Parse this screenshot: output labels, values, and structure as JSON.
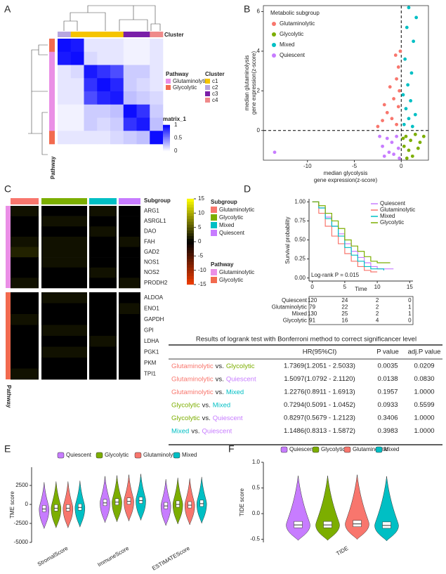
{
  "panel_labels": [
    "A",
    "B",
    "C",
    "D",
    "E",
    "F"
  ],
  "panel_a": {
    "type": "heatmap",
    "column_annotation_title": "Cluster",
    "row_annotation_title": "Pathway",
    "matrix": [
      [
        0.95,
        0.9,
        0.1,
        0.1,
        0.1,
        0.05,
        0.05,
        0.1
      ],
      [
        0.9,
        0.95,
        0.15,
        0.1,
        0.1,
        0.05,
        0.05,
        0.1
      ],
      [
        0.1,
        0.15,
        0.9,
        0.8,
        0.7,
        0.2,
        0.2,
        0.1
      ],
      [
        0.1,
        0.1,
        0.8,
        0.95,
        0.85,
        0.2,
        0.15,
        0.1
      ],
      [
        0.1,
        0.1,
        0.7,
        0.85,
        0.9,
        0.25,
        0.2,
        0.15
      ],
      [
        0.05,
        0.05,
        0.2,
        0.2,
        0.25,
        0.95,
        0.8,
        0.2
      ],
      [
        0.05,
        0.05,
        0.2,
        0.15,
        0.2,
        0.8,
        0.9,
        0.25
      ],
      [
        0.1,
        0.1,
        0.1,
        0.1,
        0.15,
        0.2,
        0.25,
        0.95
      ]
    ],
    "col_colors": [
      "#b7a6e0",
      "#f5c400",
      "#f5c400",
      "#f5c400",
      "#f5c400",
      "#7a1fa8",
      "#7a1fa8",
      "#ef8a8a"
    ],
    "row_colors": [
      "#f26a4f",
      "#ea8fe6",
      "#ea8fe6",
      "#ea8fe6",
      "#ea8fe6",
      "#ea8fe6",
      "#ea8fe6",
      "#f26a4f"
    ],
    "pathway_legend": {
      "title": "Pathway",
      "items": [
        {
          "name": "Glutaminolytic",
          "color": "#ea8fe6"
        },
        {
          "name": "Glycolytic",
          "color": "#f26a4f"
        }
      ]
    },
    "cluster_legend": {
      "title": "Cluster",
      "items": [
        {
          "name": "c1",
          "color": "#f5c400"
        },
        {
          "name": "c2",
          "color": "#b7a6e0"
        },
        {
          "name": "c3",
          "color": "#7a1fa8"
        },
        {
          "name": "c4",
          "color": "#ef8a8a"
        }
      ]
    },
    "colorbar": {
      "title": "matrix_1",
      "lim": [
        0,
        1
      ],
      "ticks": [
        1,
        0.5,
        0
      ]
    }
  },
  "panel_b": {
    "type": "scatter",
    "legend_title": "Metabolic subgroup",
    "x_label": [
      "median glycolysis",
      "gene expression(z-score)"
    ],
    "y_label": [
      "median glutaminolysis",
      "gene expression(z-score)"
    ],
    "xlim": [
      -14.7,
      2.9
    ],
    "ylim": [
      -1.5,
      6.3
    ],
    "xticks": [
      -10,
      -5,
      0
    ],
    "yticks": [
      0,
      2,
      4,
      6
    ],
    "series": [
      {
        "name": "Glutaminolytic",
        "color": "#f8766d",
        "x": [
          -0.5,
          -1,
          -1.5,
          -0.3,
          -2,
          -0.8,
          -0.2,
          -1.2,
          -0.5,
          -0.3,
          -0.6,
          -0.1,
          -2.5,
          -1.8
        ],
        "values": [
          0.3,
          0.6,
          0.9,
          1.2,
          0.5,
          1.6,
          2,
          2.2,
          2.6,
          3.2,
          3.8,
          4,
          0.2,
          1.3
        ]
      },
      {
        "name": "Glycolytic",
        "color": "#7cae00",
        "x": [
          0.5,
          1,
          1.5,
          0.3,
          2,
          0.8,
          1.2,
          0.2,
          1.8,
          2.4,
          0.6
        ],
        "values": [
          -0.3,
          -0.5,
          -0.2,
          -0.8,
          -0.6,
          -1,
          -1.3,
          -0.4,
          -0.9,
          -0.3,
          -1.4
        ]
      },
      {
        "name": "Mixed",
        "color": "#00bfc4",
        "x": [
          0.3,
          0.8,
          1.2,
          0.5,
          1,
          0.2,
          1.5,
          0.7,
          1.1,
          0.4,
          1.3,
          0.6,
          1.6,
          0.8
        ],
        "values": [
          0.3,
          0.6,
          0.2,
          1.1,
          1.5,
          1.8,
          0.8,
          2.3,
          2.9,
          3.6,
          4.5,
          5.2,
          5.7,
          6.2
        ]
      },
      {
        "name": "Quiescent",
        "color": "#c77cff",
        "x": [
          -0.5,
          -1,
          -1.5,
          -0.3,
          -2,
          -0.8,
          -1.3,
          -2.3,
          -0.2,
          -1.8,
          -13.5
        ],
        "values": [
          -0.3,
          -0.6,
          -0.4,
          -0.9,
          -0.8,
          -1.2,
          -1.1,
          -0.3,
          -1.4,
          -1.3,
          -1.1
        ]
      }
    ]
  },
  "panel_c": {
    "type": "heatmap",
    "column_annotation_title": "Subgroup",
    "row_annotation_title": "Pathway",
    "subgroup_legend": {
      "title": "Subgroup",
      "items": [
        {
          "name": "Glutaminolytic",
          "color": "#f8766d"
        },
        {
          "name": "Glycolytic",
          "color": "#7cae00"
        },
        {
          "name": "Mixed",
          "color": "#00bfc4"
        },
        {
          "name": "Quiescent",
          "color": "#c77cff"
        }
      ]
    },
    "pathway_legend": {
      "title": "Pathway",
      "items": [
        {
          "name": "Glutaminolytic",
          "color": "#ea8fe6"
        },
        {
          "name": "Glycolytic",
          "color": "#f26a4f"
        }
      ]
    },
    "colorbar": {
      "lim": [
        -15,
        15
      ],
      "ticks": [
        15,
        10,
        5,
        0,
        -5,
        -10,
        -15
      ]
    },
    "row_blocks": [
      {
        "genes": [
          "ARG1",
          "ASRGL1",
          "DAO",
          "FAH",
          "GAD2",
          "NOS1",
          "NOS2",
          "PRODH2"
        ],
        "matrix": [
          [
            1,
            0,
            1,
            0
          ],
          [
            0,
            1,
            0,
            0
          ],
          [
            0,
            0,
            1,
            0
          ],
          [
            1,
            1,
            0,
            1
          ],
          [
            2,
            1,
            0,
            0
          ],
          [
            0,
            1,
            0,
            0
          ],
          [
            0,
            0,
            1,
            0
          ],
          [
            1,
            0,
            0,
            1
          ]
        ]
      },
      {
        "genes": [
          "ALDOA",
          "ENO1",
          "GAPDH",
          "GPI",
          "LDHA",
          "PGK1",
          "PKM",
          "TPI1"
        ],
        "matrix": [
          [
            0,
            1,
            0,
            0
          ],
          [
            0,
            0,
            0,
            1
          ],
          [
            1,
            0,
            0,
            0
          ],
          [
            0,
            1,
            0,
            0
          ],
          [
            0,
            0,
            1,
            0
          ],
          [
            0,
            1,
            0,
            0
          ],
          [
            0,
            0,
            0,
            0
          ],
          [
            1,
            0,
            0,
            0
          ]
        ]
      }
    ]
  },
  "panel_d": {
    "type": "line",
    "y_label": "Survival probability",
    "x_label": "Time",
    "xlim": [
      -0.5,
      15.5
    ],
    "ylim": [
      -0.04,
      1.04
    ],
    "xticks": [
      0,
      5,
      10,
      15
    ],
    "yticks": [
      {
        "value": 0,
        "label": "0.00"
      },
      {
        "value": 0.25,
        "label": "0.25"
      },
      {
        "value": 0.5,
        "label": "0.50"
      },
      {
        "value": 0.75,
        "label": "0.75"
      },
      {
        "value": 1,
        "label": "1.00"
      }
    ],
    "annotation": "Log-rank P = 0.015",
    "series": [
      {
        "name": "Quiescent",
        "color": "#c77cff",
        "x": [
          0,
          1,
          2,
          3,
          4,
          5,
          6,
          7,
          8,
          9,
          10,
          12.5
        ],
        "values": [
          1,
          0.92,
          0.8,
          0.68,
          0.58,
          0.45,
          0.35,
          0.27,
          0.2,
          0.15,
          0.12,
          0.12
        ]
      },
      {
        "name": "Glutaminolytic",
        "color": "#f8766d",
        "x": [
          0,
          1,
          2,
          3,
          4,
          5,
          6,
          7,
          8,
          9,
          10
        ],
        "values": [
          1,
          0.85,
          0.68,
          0.55,
          0.45,
          0.32,
          0.22,
          0.15,
          0.1,
          0.08,
          0.08
        ]
      },
      {
        "name": "Mixed",
        "color": "#00bfc4",
        "x": [
          0,
          1,
          2,
          3,
          4,
          5,
          6,
          7,
          8,
          9,
          10,
          11
        ],
        "values": [
          1,
          0.92,
          0.78,
          0.68,
          0.55,
          0.4,
          0.3,
          0.22,
          0.15,
          0.12,
          0.12,
          0.1
        ]
      },
      {
        "name": "Glycolytic",
        "color": "#7cae00",
        "x": [
          0,
          1,
          2,
          3,
          4,
          5,
          6,
          7,
          8,
          9,
          10,
          12
        ],
        "values": [
          1,
          0.95,
          0.85,
          0.75,
          0.65,
          0.5,
          0.42,
          0.35,
          0.28,
          0.22,
          0.2,
          0.2
        ]
      }
    ],
    "risk_table": {
      "x": [
        0,
        5,
        10,
        15
      ],
      "rows": [
        {
          "name": "Quiescent",
          "color": "#c77cff",
          "values": [
            120,
            24,
            2,
            0
          ]
        },
        {
          "name": "Glutaminolytic",
          "color": "#f8766d",
          "values": [
            79,
            22,
            2,
            1
          ]
        },
        {
          "name": "Mixed",
          "color": "#00bfc4",
          "values": [
            130,
            25,
            2,
            1
          ]
        },
        {
          "name": "Glycolytic",
          "color": "#7cae00",
          "values": [
            91,
            16,
            4,
            0
          ]
        }
      ]
    }
  },
  "table": {
    "title": "Results of  logrank test with Bonferroni method to correct significancer level",
    "header": [
      "HR(95%CI)",
      "P value",
      "adj.P value"
    ],
    "rows": [
      {
        "group1": "Glutaminolytic",
        "vs": "vs.",
        "group2": "Glycolytic",
        "hr": "1.7369(1.2051 - 2.5033)",
        "p": "0.0035",
        "adjp": "0.0209"
      },
      {
        "group1": "Glutaminolytic",
        "vs": "vs.",
        "group2": "Quiescent",
        "hr": "1.5097(1.0792 - 2.1120)",
        "p": "0.0138",
        "adjp": "0.0830"
      },
      {
        "group1": "Glutaminolytic",
        "vs": "vs.",
        "group2": "Mixed",
        "hr": "1.2276(0.8911 - 1.6913)",
        "p": "0.1957",
        "adjp": "1.0000"
      },
      {
        "group1": "Glycolytic",
        "vs": "vs.",
        "group2": "Mixed",
        "hr": "0.7294(0.5091 - 1.0452)",
        "p": "0.0933",
        "adjp": "0.5599"
      },
      {
        "group1": "Glycolytic",
        "vs": "vs.",
        "group2": "Quiescent",
        "hr": "0.8297(0.5679 - 1.2123)",
        "p": "0.3406",
        "adjp": "1.0000"
      },
      {
        "group1": "Mixed",
        "vs": "vs.",
        "group2": "Quiescent",
        "hr": "1.1486(0.8313 - 1.5872)",
        "p": "0.3983",
        "adjp": "1.0000"
      }
    ]
  },
  "panel_e": {
    "type": "violin",
    "y_label": "TME score",
    "categories": [
      "StromalScore",
      "ImmuneScore",
      "ESTIMATEScore"
    ],
    "ylim": [
      -5000,
      4900
    ],
    "yticks": [
      2500,
      0,
      -2500,
      -5000
    ],
    "series": [
      {
        "name": "Quiescent",
        "color": "#c77cff",
        "values": [
          -600,
          200,
          -200
        ]
      },
      {
        "name": "Glycolytic",
        "color": "#7cae00",
        "values": [
          -500,
          300,
          0
        ]
      },
      {
        "name": "Glutaminolytic",
        "color": "#f8766d",
        "values": [
          -500,
          400,
          -100
        ]
      },
      {
        "name": "Mixed",
        "color": "#00bfc4",
        "values": [
          -400,
          500,
          100
        ]
      }
    ]
  },
  "panel_f": {
    "type": "violin",
    "y_label": "TIDE score",
    "categories": [
      "TIDE"
    ],
    "ylim": [
      -0.56,
      1.0
    ],
    "yticks": [
      {
        "value": 1,
        "label": "1.0"
      },
      0.5,
      {
        "value": 0,
        "label": "0.0"
      },
      -0.5
    ],
    "series": [
      {
        "name": "Quiescent",
        "color": "#c77cff",
        "values": [
          -0.22
        ]
      },
      {
        "name": "Glycolytic",
        "color": "#7cae00",
        "values": [
          -0.22
        ]
      },
      {
        "name": "Glutaminolytic",
        "color": "#f8766d",
        "values": [
          -0.2
        ]
      },
      {
        "name": "Mixed",
        "color": "#00bfc4",
        "values": [
          -0.23
        ]
      }
    ]
  }
}
